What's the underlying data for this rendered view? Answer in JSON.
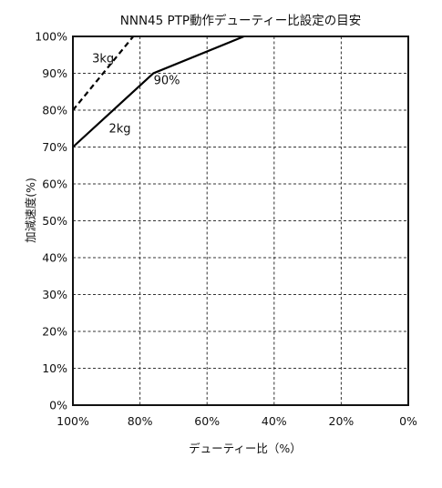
{
  "chart_data": {
    "type": "line",
    "title": "NNN45 PTP動作デューティー比設定の目安",
    "xlabel": "デューティー比（%）",
    "ylabel": "加減速度(%)",
    "xlim": [
      100,
      0
    ],
    "ylim": [
      0,
      100
    ],
    "xticks": [
      "100%",
      "80%",
      "60%",
      "40%",
      "20%",
      "0%"
    ],
    "xtick_values": [
      100,
      80,
      60,
      40,
      20,
      0
    ],
    "yticks": [
      "0%",
      "10%",
      "20%",
      "30%",
      "40%",
      "50%",
      "60%",
      "70%",
      "80%",
      "90%",
      "100%"
    ],
    "ytick_values": [
      0,
      10,
      20,
      30,
      40,
      50,
      60,
      70,
      80,
      90,
      100
    ],
    "grid": true,
    "series": [
      {
        "name": "2kg",
        "style": "solid",
        "color": "#000000",
        "x": [
          100,
          76,
          49
        ],
        "y": [
          70,
          90,
          100
        ]
      },
      {
        "name": "3kg",
        "style": "dashed",
        "color": "#000000",
        "x": [
          100,
          82
        ],
        "y": [
          80,
          100
        ]
      }
    ],
    "annotations": [
      {
        "text": "3kg",
        "x": 91,
        "y": 93
      },
      {
        "text": "2kg",
        "x": 86,
        "y": 74
      },
      {
        "text": "90%",
        "x": 72,
        "y": 87
      }
    ]
  }
}
